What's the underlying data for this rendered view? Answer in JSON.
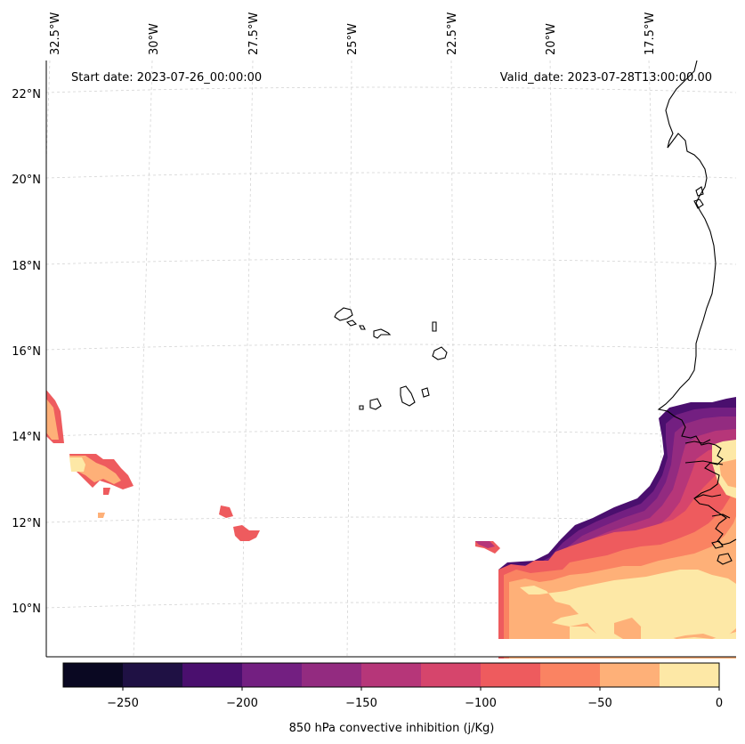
{
  "map": {
    "start_date_label": "Start date: 2023-07-26_00:00:00",
    "valid_date_label": "Valid_date: 2023-07-28T13:00:00.00",
    "longitude_labels": [
      "32.5°W",
      "30°W",
      "27.5°W",
      "25°W",
      "22.5°W",
      "20°W",
      "17.5°W"
    ],
    "latitude_labels": [
      "22°N",
      "20°N",
      "18°N",
      "16°N",
      "14°N",
      "12°N",
      "10°N"
    ],
    "variable": "850 hPa convective inhibition",
    "units": "j/Kg"
  },
  "colorbar": {
    "label": "850 hPa convective inhibition (j/Kg)",
    "tick_labels": [
      "−250",
      "−200",
      "−150",
      "−100",
      "−50",
      "0"
    ],
    "levels": [
      -275,
      -250,
      -225,
      -200,
      -175,
      -150,
      -125,
      -100,
      -75,
      -50,
      -25,
      0
    ],
    "colors": [
      "#0a0822",
      "#1f1144",
      "#4a0f6e",
      "#731f81",
      "#932b80",
      "#b63679",
      "#d6456c",
      "#ee5b5e",
      "#fa8362",
      "#feb078",
      "#fde8a6"
    ]
  },
  "fills": {
    "c50": "#feb078",
    "c75": "#fa8362",
    "c100": "#ee5b5e",
    "c125": "#d6456c",
    "c150": "#b63679",
    "c175": "#932b80",
    "c200": "#731f81",
    "c225": "#4a0f6e",
    "c25": "#fde8a6"
  }
}
